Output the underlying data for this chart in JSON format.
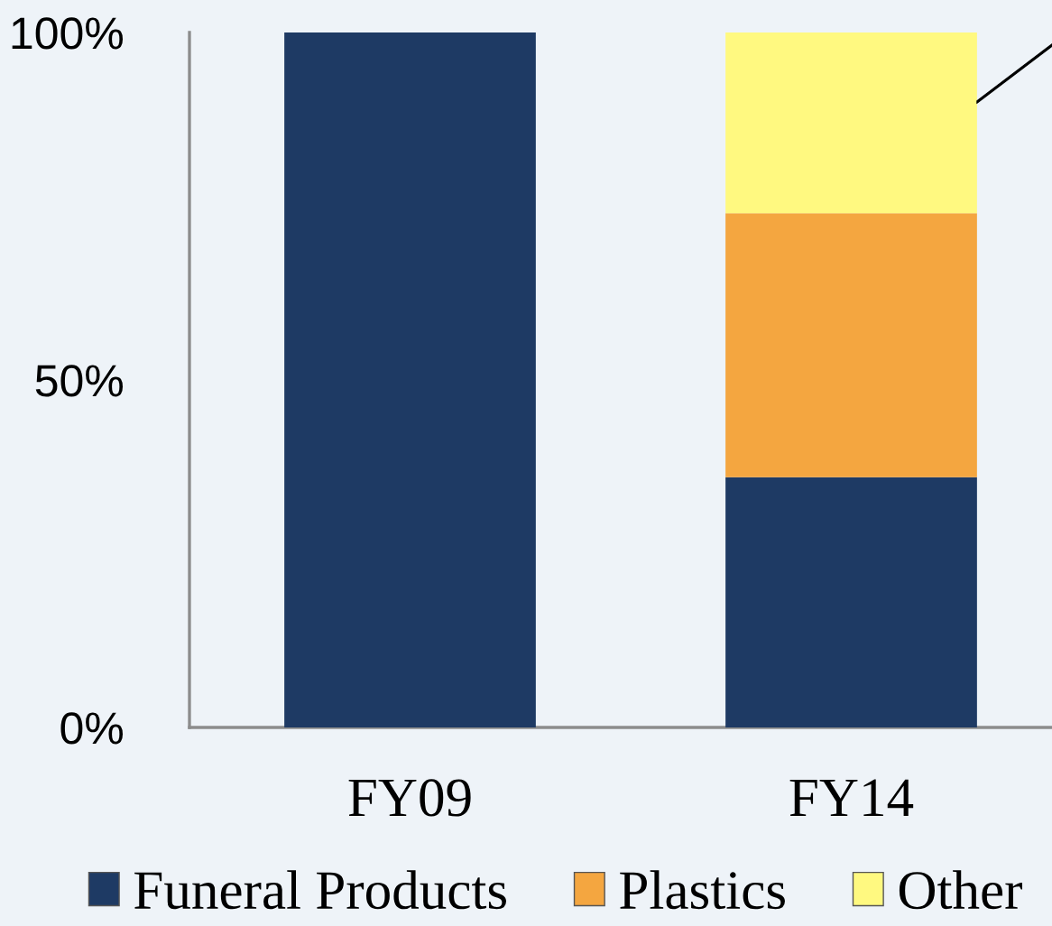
{
  "chart_data": {
    "type": "bar",
    "stacked": true,
    "categories": [
      "FY09",
      "FY14"
    ],
    "series": [
      {
        "name": "Funeral Products",
        "color": "#1e3a64",
        "values": [
          100,
          36
        ]
      },
      {
        "name": "Plastics",
        "color": "#f4a640",
        "values": [
          null,
          38
        ]
      },
      {
        "name": "Other",
        "color": "#fff980",
        "values": [
          null,
          26
        ]
      }
    ],
    "ylim": [
      0,
      100
    ],
    "yticks": [
      {
        "value": 0,
        "label": "0%"
      },
      {
        "value": 50,
        "label": "50%"
      },
      {
        "value": 100,
        "label": "100%"
      }
    ],
    "grid": false,
    "legend": "bottom"
  }
}
